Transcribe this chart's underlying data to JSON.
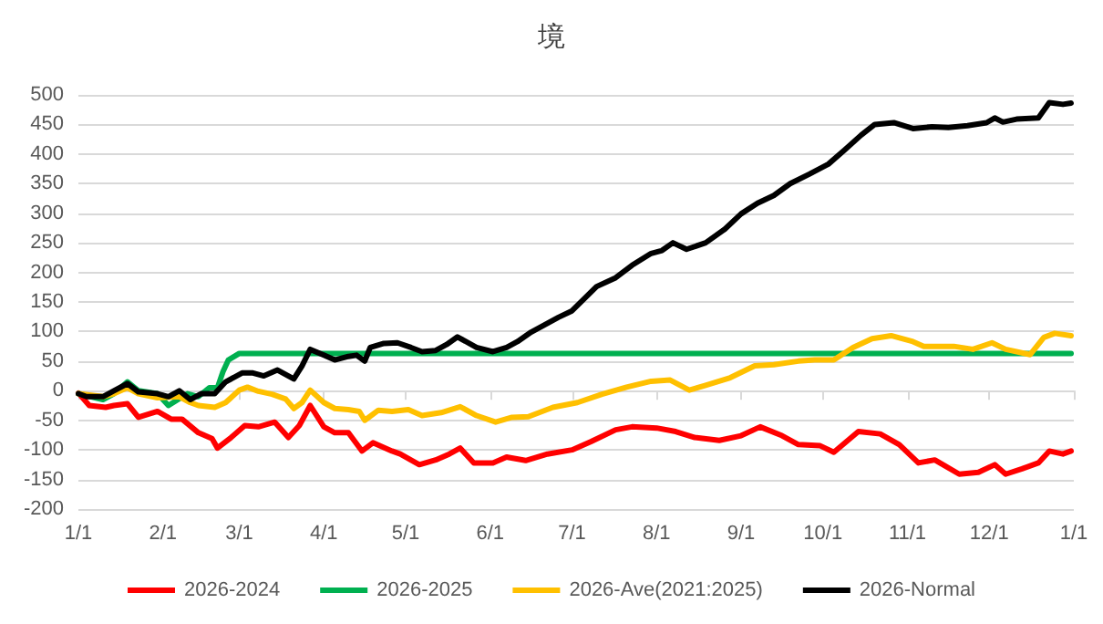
{
  "chart_data": {
    "type": "line",
    "title": "境",
    "grid": "y",
    "legend": "bottom",
    "marker": "none",
    "line_style": "solid",
    "xlim": [
      "2026-01-01",
      "2027-01-01"
    ],
    "xticks": [
      {
        "value": "2026-01-01",
        "label": "1/1"
      },
      {
        "value": "2026-02-01",
        "label": "2/1"
      },
      {
        "value": "2026-03-01",
        "label": "3/1"
      },
      {
        "value": "2026-04-01",
        "label": "4/1"
      },
      {
        "value": "2026-05-01",
        "label": "5/1"
      },
      {
        "value": "2026-06-01",
        "label": "6/1"
      },
      {
        "value": "2026-07-01",
        "label": "7/1"
      },
      {
        "value": "2026-08-01",
        "label": "8/1"
      },
      {
        "value": "2026-09-01",
        "label": "9/1"
      },
      {
        "value": "2026-10-01",
        "label": "10/1"
      },
      {
        "value": "2026-11-01",
        "label": "11/1"
      },
      {
        "value": "2026-12-01",
        "label": "12/1"
      },
      {
        "value": "2027-01-01",
        "label": "1/1"
      }
    ],
    "ylim": [
      -200,
      500
    ],
    "yticks": [
      -200,
      -150,
      -100,
      -50,
      0,
      50,
      100,
      150,
      200,
      250,
      300,
      350,
      400,
      450,
      500
    ],
    "series": [
      {
        "name": "2026-2024",
        "color": "#ff0000",
        "x": [
          "2026-01-01",
          "2026-01-05",
          "2026-01-11",
          "2026-01-14",
          "2026-01-19",
          "2026-01-23",
          "2026-01-30",
          "2026-02-04",
          "2026-02-08",
          "2026-02-14",
          "2026-02-19",
          "2026-02-21",
          "2026-02-26",
          "2026-03-03",
          "2026-03-08",
          "2026-03-14",
          "2026-03-19",
          "2026-03-23",
          "2026-03-27",
          "2026-04-01",
          "2026-04-05",
          "2026-04-10",
          "2026-04-15",
          "2026-04-19",
          "2026-04-26",
          "2026-04-29",
          "2026-05-06",
          "2026-05-12",
          "2026-05-17",
          "2026-05-21",
          "2026-05-26",
          "2026-06-02",
          "2026-06-07",
          "2026-06-14",
          "2026-06-22",
          "2026-07-01",
          "2026-07-08",
          "2026-07-17",
          "2026-07-23",
          "2026-08-01",
          "2026-08-08",
          "2026-08-15",
          "2026-08-24",
          "2026-09-01",
          "2026-09-08",
          "2026-09-16",
          "2026-09-22",
          "2026-09-30",
          "2026-10-05",
          "2026-10-14",
          "2026-10-22",
          "2026-10-29",
          "2026-11-05",
          "2026-11-11",
          "2026-11-20",
          "2026-11-27",
          "2026-12-03",
          "2026-12-07",
          "2026-12-13",
          "2026-12-19",
          "2026-12-23",
          "2026-12-28",
          "2026-12-31"
        ],
        "values": [
          -4,
          -25,
          -28,
          -25,
          -22,
          -45,
          -35,
          -48,
          -48,
          -71,
          -81,
          -97,
          -79,
          -59,
          -61,
          -53,
          -79,
          -59,
          -25,
          -61,
          -71,
          -71,
          -102,
          -88,
          -102,
          -107,
          -125,
          -117,
          -107,
          -97,
          -122,
          -122,
          -112,
          -118,
          -107,
          -100,
          -86,
          -66,
          -61,
          -63,
          -69,
          -79,
          -84,
          -76,
          -61,
          -76,
          -91,
          -93,
          -104,
          -69,
          -73,
          -91,
          -122,
          -117,
          -141,
          -138,
          -125,
          -141,
          -132,
          -122,
          -102,
          -107,
          -102
        ]
      },
      {
        "name": "2026-2025",
        "color": "#00b050",
        "x": [
          "2026-01-01",
          "2026-01-10",
          "2026-01-14",
          "2026-01-19",
          "2026-01-23",
          "2026-01-30",
          "2026-02-03",
          "2026-02-10",
          "2026-02-14",
          "2026-02-18",
          "2026-02-21",
          "2026-02-23",
          "2026-02-25",
          "2026-03-01",
          "2026-12-31"
        ],
        "values": [
          -5,
          -15,
          -5,
          15,
          0,
          -5,
          -25,
          -5,
          -10,
          5,
          5,
          32,
          52,
          63,
          63
        ]
      },
      {
        "name": "2026-Ave(2021:2025)",
        "color": "#ffc000",
        "x": [
          "2026-01-01",
          "2026-01-10",
          "2026-01-14",
          "2026-01-19",
          "2026-01-23",
          "2026-01-30",
          "2026-02-07",
          "2026-02-11",
          "2026-02-14",
          "2026-02-20",
          "2026-02-24",
          "2026-03-01",
          "2026-03-04",
          "2026-03-08",
          "2026-03-13",
          "2026-03-18",
          "2026-03-21",
          "2026-03-24",
          "2026-03-27",
          "2026-04-01",
          "2026-04-05",
          "2026-04-10",
          "2026-04-14",
          "2026-04-16",
          "2026-04-21",
          "2026-04-26",
          "2026-05-02",
          "2026-05-07",
          "2026-05-14",
          "2026-05-21",
          "2026-05-27",
          "2026-06-03",
          "2026-06-09",
          "2026-06-15",
          "2026-06-24",
          "2026-07-03",
          "2026-07-12",
          "2026-07-21",
          "2026-07-30",
          "2026-08-06",
          "2026-08-13",
          "2026-08-19",
          "2026-08-28",
          "2026-09-06",
          "2026-09-13",
          "2026-09-22",
          "2026-09-28",
          "2026-10-05",
          "2026-10-12",
          "2026-10-19",
          "2026-10-26",
          "2026-11-03",
          "2026-11-07",
          "2026-11-18",
          "2026-11-25",
          "2026-12-02",
          "2026-12-07",
          "2026-12-16",
          "2026-12-21",
          "2026-12-25",
          "2026-12-31"
        ],
        "values": [
          -5,
          -10,
          -5,
          5,
          -5,
          -12,
          -10,
          -20,
          -25,
          -28,
          -20,
          1,
          6,
          -1,
          -6,
          -14,
          -30,
          -20,
          1,
          -20,
          -30,
          -32,
          -35,
          -50,
          -33,
          -35,
          -32,
          -42,
          -37,
          -27,
          -42,
          -53,
          -45,
          -44,
          -28,
          -20,
          -6,
          6,
          16,
          18,
          1,
          9,
          22,
          42,
          44,
          50,
          52,
          52,
          73,
          88,
          93,
          83,
          75,
          75,
          70,
          81,
          70,
          61,
          90,
          97,
          93
        ]
      },
      {
        "name": "2026-Normal",
        "color": "#000000",
        "x": [
          "2026-01-01",
          "2026-01-04",
          "2026-01-10",
          "2026-01-14",
          "2026-01-19",
          "2026-01-23",
          "2026-01-30",
          "2026-02-03",
          "2026-02-07",
          "2026-02-11",
          "2026-02-15",
          "2026-02-20",
          "2026-02-24",
          "2026-03-02",
          "2026-03-06",
          "2026-03-10",
          "2026-03-15",
          "2026-03-21",
          "2026-03-24",
          "2026-03-27",
          "2026-04-01",
          "2026-04-05",
          "2026-04-10",
          "2026-04-13",
          "2026-04-16",
          "2026-04-18",
          "2026-04-23",
          "2026-04-28",
          "2026-05-03",
          "2026-05-07",
          "2026-05-12",
          "2026-05-16",
          "2026-05-20",
          "2026-05-27",
          "2026-06-02",
          "2026-06-07",
          "2026-06-11",
          "2026-06-16",
          "2026-06-22",
          "2026-06-26",
          "2026-07-01",
          "2026-07-10",
          "2026-07-17",
          "2026-07-23",
          "2026-07-30",
          "2026-08-03",
          "2026-08-07",
          "2026-08-12",
          "2026-08-19",
          "2026-08-26",
          "2026-09-01",
          "2026-09-07",
          "2026-09-13",
          "2026-09-19",
          "2026-09-26",
          "2026-10-03",
          "2026-10-09",
          "2026-10-15",
          "2026-10-20",
          "2026-10-27",
          "2026-11-03",
          "2026-11-10",
          "2026-11-16",
          "2026-11-23",
          "2026-11-30",
          "2026-12-03",
          "2026-12-06",
          "2026-12-11",
          "2026-12-19",
          "2026-12-23",
          "2026-12-28",
          "2026-12-31"
        ],
        "values": [
          -5,
          -10,
          -10,
          0,
          12,
          -2,
          -5,
          -10,
          0,
          -15,
          -5,
          -5,
          15,
          30,
          30,
          25,
          35,
          20,
          42,
          70,
          60,
          52,
          58,
          60,
          50,
          73,
          80,
          81,
          73,
          66,
          68,
          78,
          91,
          73,
          66,
          73,
          83,
          99,
          114,
          124,
          135,
          176,
          191,
          212,
          232,
          237,
          250,
          239,
          250,
          273,
          299,
          317,
          330,
          350,
          366,
          383,
          407,
          432,
          450,
          453,
          443,
          446,
          445,
          448,
          453,
          461,
          454,
          459,
          461,
          487,
          484,
          486
        ]
      }
    ]
  }
}
